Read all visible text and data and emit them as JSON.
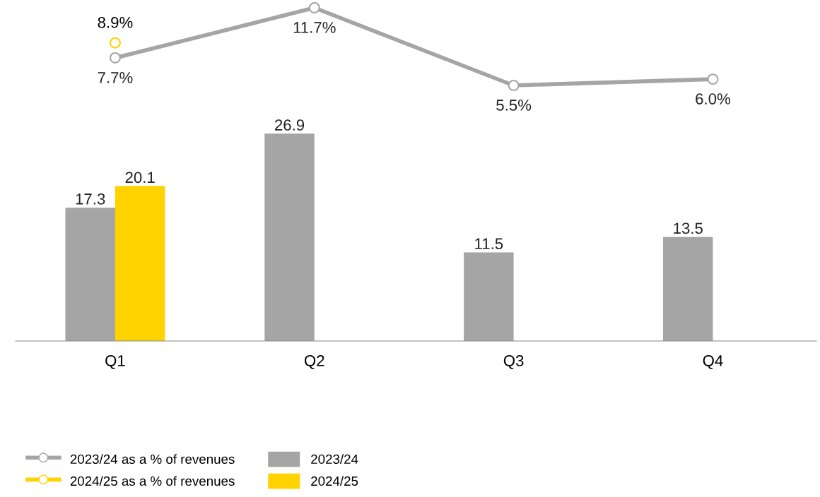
{
  "chart_data": [
    {
      "type": "line",
      "categories": [
        null,
        null,
        null,
        null
      ],
      "marker": "circle",
      "tick_labels": false,
      "legend": "bottom",
      "series": [
        {
          "name": "2023/24 as a % of revenues",
          "type": "line",
          "color": "#a5a5a5",
          "values": [
            7.7,
            11.7,
            5.5,
            6.0
          ],
          "value_labels": [
            "7.7%",
            "11.7%",
            "5.5%",
            "6.0%"
          ]
        },
        {
          "name": "2024/25 as a % of revenues",
          "type": "line",
          "color": "#ffd200",
          "values": [
            8.9,
            null,
            null,
            null
          ],
          "value_labels": [
            "8.9%",
            null,
            null,
            null
          ]
        }
      ]
    },
    {
      "type": "bar",
      "categories": [
        "Q1",
        "Q2",
        "Q3",
        "Q4"
      ],
      "grid": false,
      "legend": "bottom",
      "tick_labels": "x",
      "series": [
        {
          "name": "2023/24",
          "type": "bar",
          "color": "#a5a5a5",
          "values": [
            17.3,
            26.9,
            11.5,
            13.5
          ],
          "value_labels": [
            "17.3",
            "26.9",
            "11.5",
            "13.5"
          ]
        },
        {
          "name": "2024/25",
          "type": "bar",
          "color": "#ffd200",
          "values": [
            20.1,
            null,
            null,
            null
          ],
          "value_labels": [
            "20.1",
            null,
            null,
            null
          ]
        }
      ]
    }
  ]
}
